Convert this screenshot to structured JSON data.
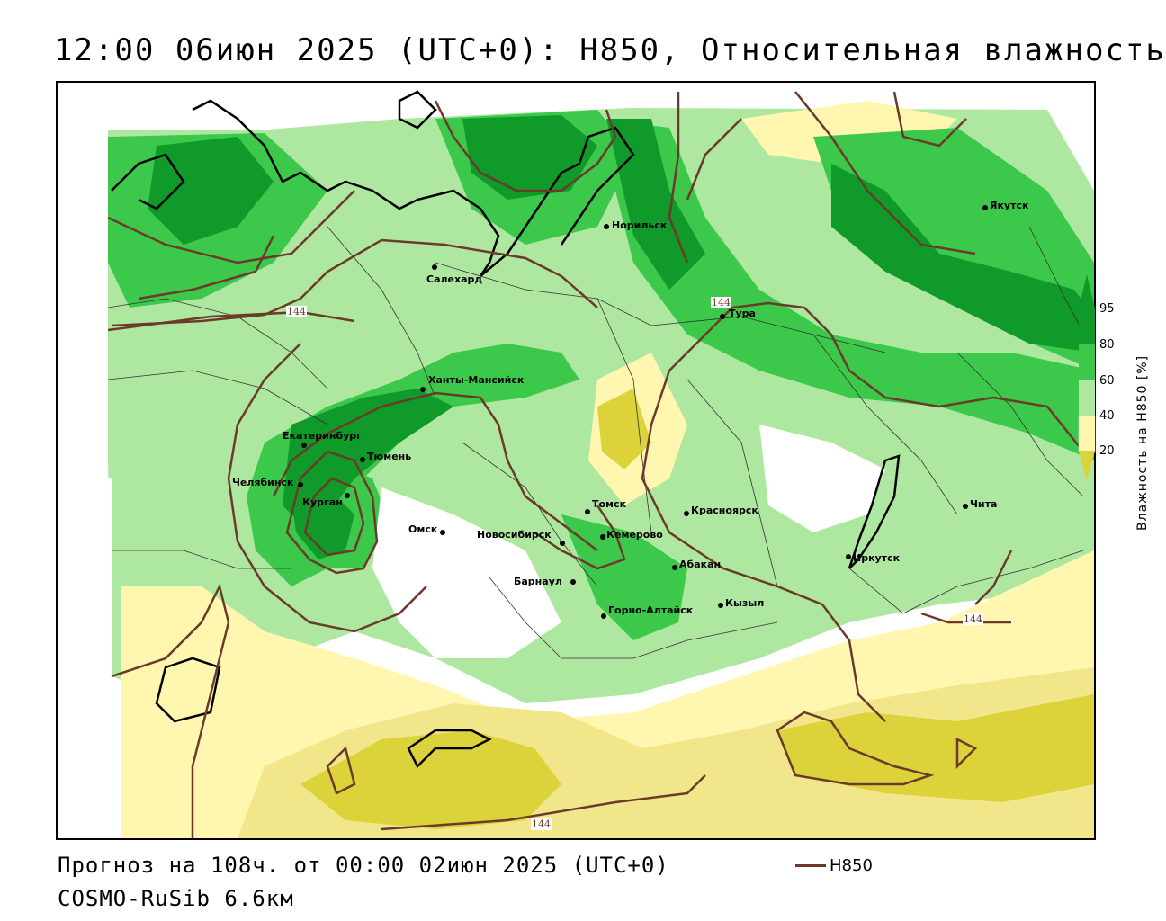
{
  "title": "12:00 06июн 2025 (UTC+0): H850, Относительная влажность",
  "footer": {
    "forecast": "Прогноз на 108ч. от 00:00 02июн 2025 (UTC+0)",
    "model": "COSMO-RuSib 6.6км"
  },
  "legend": {
    "line_label": "H850",
    "line_color": "#6b3a2a"
  },
  "colorbar": {
    "title": "Влажность на H850 [%]",
    "ticks": [
      "95",
      "80",
      "60",
      "40",
      "20"
    ],
    "colors": {
      "dark_green": "#0f9a2a",
      "green": "#3cc84a",
      "light_green": "#aee8a0",
      "pale_yellow": "#fff6b0",
      "yellow": "#f2e68a",
      "olive": "#dcd23a"
    }
  },
  "isoline_labels": [
    "144",
    "144",
    "144",
    "144"
  ],
  "cities": [
    "Якутск",
    "Норильск",
    "Салехард",
    "Тура",
    "Ханты-Мансийск",
    "Екатеринбург",
    "Тюмень",
    "Челябинск",
    "Курган",
    "Омск",
    "Новосибирск",
    "Томск",
    "Кемерово",
    "Красноярск",
    "Абакан",
    "Барнаул",
    "Горно-Алтайск",
    "Кызыл",
    "Иркутск",
    "Чита"
  ]
}
